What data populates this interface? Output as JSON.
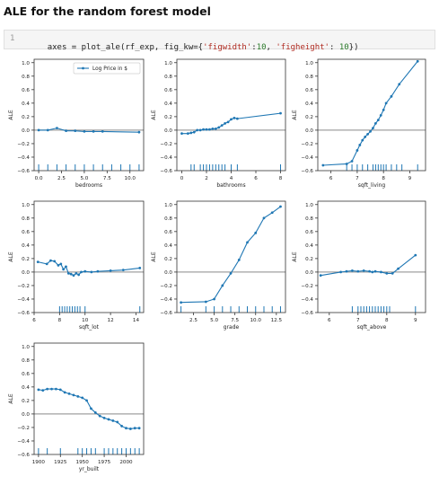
{
  "page": {
    "title": "ALE for the random forest model",
    "code": {
      "line_number": "1",
      "parts": [
        {
          "text": "axes = plot_ale(rf_exp, fig_kw={",
          "kind": "plain"
        },
        {
          "text": "'figwidth'",
          "kind": "str"
        },
        {
          "text": ":",
          "kind": "plain"
        },
        {
          "text": "10",
          "kind": "num"
        },
        {
          "text": ", ",
          "kind": "plain"
        },
        {
          "text": "'figheight'",
          "kind": "str"
        },
        {
          "text": ": ",
          "kind": "plain"
        },
        {
          "text": "10",
          "kind": "num"
        },
        {
          "text": "})",
          "kind": "plain"
        }
      ]
    }
  },
  "colors": {
    "line": "#1f77b4",
    "zero_line": "#a0a0a0",
    "axes": "#333333"
  },
  "chart_data": [
    {
      "type": "line",
      "xlabel": "bedrooms",
      "ylabel": "ALE",
      "xlim": [
        -0.5,
        11.5
      ],
      "ylim": [
        -0.6,
        1.05
      ],
      "xticks": [
        0,
        2.5,
        5,
        7.5,
        10
      ],
      "xtick_labels": [
        "0.0",
        "2.5",
        "5.0",
        "7.5",
        "10.0"
      ],
      "yticks": [
        -0.6,
        -0.4,
        -0.2,
        0,
        0.2,
        0.4,
        0.6,
        0.8,
        1.0
      ],
      "ytick_labels": [
        "−0.6",
        "−0.4",
        "−0.2",
        "0.0",
        "0.2",
        "0.4",
        "0.6",
        "0.8",
        "1.0"
      ],
      "legend": {
        "label": "Log Price in $",
        "position": "top-right"
      },
      "series": [
        {
          "name": "Log Price in $",
          "x": [
            0,
            1,
            2,
            3,
            4,
            5,
            6,
            7,
            11
          ],
          "y": [
            0.0,
            0.0,
            0.03,
            -0.01,
            -0.01,
            -0.02,
            -0.02,
            -0.02,
            -0.03
          ]
        }
      ],
      "rug": [
        0,
        1,
        2,
        3,
        4,
        5,
        6,
        7,
        8,
        9,
        10,
        11
      ]
    },
    {
      "type": "line",
      "xlabel": "bathrooms",
      "ylabel": "ALE",
      "xlim": [
        -0.4,
        8.4
      ],
      "ylim": [
        -0.6,
        1.05
      ],
      "xticks": [
        0,
        2,
        4,
        6,
        8
      ],
      "xtick_labels": [
        "0",
        "2",
        "4",
        "6",
        "8"
      ],
      "yticks": [
        -0.6,
        -0.4,
        -0.2,
        0,
        0.2,
        0.4,
        0.6,
        0.8,
        1.0
      ],
      "ytick_labels": [
        "−0.6",
        "−0.4",
        "−0.2",
        "0.0",
        "0.2",
        "0.4",
        "0.6",
        "0.8",
        "1.0"
      ],
      "series": [
        {
          "name": "",
          "x": [
            0,
            0.5,
            0.75,
            1,
            1.25,
            1.5,
            1.75,
            2,
            2.25,
            2.5,
            2.75,
            3,
            3.25,
            3.5,
            3.75,
            4,
            4.25,
            4.5,
            8
          ],
          "y": [
            -0.05,
            -0.05,
            -0.04,
            -0.03,
            0.0,
            0.0,
            0.01,
            0.01,
            0.01,
            0.02,
            0.02,
            0.04,
            0.07,
            0.1,
            0.12,
            0.16,
            0.18,
            0.17,
            0.25
          ]
        }
      ],
      "rug": [
        0.75,
        1,
        1.5,
        1.75,
        2,
        2.25,
        2.5,
        2.75,
        3,
        3.25,
        3.5,
        4,
        4.5,
        8
      ]
    },
    {
      "type": "line",
      "xlabel": "sqft_living",
      "ylabel": "ALE",
      "xlim": [
        5.5,
        9.6
      ],
      "ylim": [
        -0.6,
        1.05
      ],
      "xticks": [
        6,
        7,
        8,
        9
      ],
      "xtick_labels": [
        "6",
        "7",
        "8",
        "9"
      ],
      "yticks": [
        -0.6,
        -0.4,
        -0.2,
        0,
        0.2,
        0.4,
        0.6,
        0.8,
        1.0
      ],
      "ytick_labels": [
        "−0.6",
        "−0.4",
        "−0.2",
        "0.0",
        "0.2",
        "0.4",
        "0.6",
        "0.8",
        "1.0"
      ],
      "series": [
        {
          "name": "",
          "x": [
            5.7,
            6.6,
            6.8,
            7.0,
            7.1,
            7.2,
            7.3,
            7.4,
            7.5,
            7.6,
            7.7,
            7.8,
            7.9,
            8.0,
            8.1,
            8.3,
            8.6,
            9.3
          ],
          "y": [
            -0.52,
            -0.5,
            -0.46,
            -0.3,
            -0.22,
            -0.15,
            -0.1,
            -0.06,
            -0.02,
            0.03,
            0.1,
            0.15,
            0.22,
            0.3,
            0.4,
            0.5,
            0.68,
            1.02
          ]
        }
      ],
      "rug": [
        6.6,
        6.8,
        7.0,
        7.2,
        7.4,
        7.6,
        7.7,
        7.8,
        7.9,
        8.0,
        8.1,
        8.3,
        8.5,
        8.7,
        9.3
      ]
    },
    {
      "type": "line",
      "xlabel": "sqft_lot",
      "ylabel": "ALE",
      "xlim": [
        6,
        14.6
      ],
      "ylim": [
        -0.6,
        1.05
      ],
      "xticks": [
        6,
        8,
        10,
        12,
        14
      ],
      "xtick_labels": [
        "6",
        "8",
        "10",
        "12",
        "14"
      ],
      "yticks": [
        -0.6,
        -0.4,
        -0.2,
        0,
        0.2,
        0.4,
        0.6,
        0.8,
        1.0
      ],
      "ytick_labels": [
        "−0.6",
        "−0.4",
        "−0.2",
        "0.0",
        "0.2",
        "0.4",
        "0.6",
        "0.8",
        "1.0"
      ],
      "series": [
        {
          "name": "",
          "x": [
            6.3,
            7.0,
            7.3,
            7.6,
            7.9,
            8.1,
            8.3,
            8.5,
            8.7,
            8.9,
            9.1,
            9.3,
            9.5,
            9.7,
            10.0,
            10.5,
            11,
            12,
            13,
            14.3
          ],
          "y": [
            0.15,
            0.12,
            0.17,
            0.16,
            0.1,
            0.12,
            0.04,
            0.08,
            -0.02,
            -0.03,
            -0.05,
            -0.02,
            -0.04,
            0.0,
            0.01,
            0.0,
            0.01,
            0.02,
            0.03,
            0.06
          ]
        }
      ],
      "rug": [
        8.0,
        8.2,
        8.4,
        8.6,
        8.8,
        9.0,
        9.2,
        9.4,
        9.6,
        10.0,
        14.3
      ]
    },
    {
      "type": "line",
      "xlabel": "grade",
      "ylabel": "ALE",
      "xlim": [
        0.5,
        13.6
      ],
      "ylim": [
        -0.6,
        1.05
      ],
      "xticks": [
        2.5,
        5,
        7.5,
        10,
        12.5
      ],
      "xtick_labels": [
        "2.5",
        "5.0",
        "7.5",
        "10.0",
        "12.5"
      ],
      "yticks": [
        -0.6,
        -0.4,
        -0.2,
        0,
        0.2,
        0.4,
        0.6,
        0.8,
        1.0
      ],
      "ytick_labels": [
        "−0.6",
        "−0.4",
        "−0.2",
        "0.0",
        "0.2",
        "0.4",
        "0.6",
        "0.8",
        "1.0"
      ],
      "series": [
        {
          "name": "",
          "x": [
            1,
            4,
            5,
            6,
            7,
            8,
            9,
            10,
            11,
            12,
            13
          ],
          "y": [
            -0.45,
            -0.44,
            -0.4,
            -0.2,
            -0.02,
            0.18,
            0.44,
            0.58,
            0.8,
            0.88,
            0.97
          ]
        }
      ],
      "rug": [
        1,
        4,
        5,
        6,
        7,
        8,
        9,
        10,
        11,
        12,
        13
      ]
    },
    {
      "type": "line",
      "xlabel": "sqft_above",
      "ylabel": "ALE",
      "xlim": [
        5.6,
        9.35
      ],
      "ylim": [
        -0.6,
        1.05
      ],
      "xticks": [
        6,
        7,
        8,
        9
      ],
      "xtick_labels": [
        "6",
        "7",
        "8",
        "9"
      ],
      "yticks": [
        -0.6,
        -0.4,
        -0.2,
        0,
        0.2,
        0.4,
        0.6,
        0.8,
        1.0
      ],
      "ytick_labels": [
        "−0.6",
        "−0.4",
        "−0.2",
        "0.0",
        "0.2",
        "0.4",
        "0.6",
        "0.8",
        "1.0"
      ],
      "series": [
        {
          "name": "",
          "x": [
            5.7,
            6.4,
            6.6,
            6.8,
            7.0,
            7.2,
            7.4,
            7.5,
            7.6,
            7.8,
            8.0,
            8.2,
            8.4,
            9.0
          ],
          "y": [
            -0.05,
            0.0,
            0.01,
            0.02,
            0.01,
            0.02,
            0.01,
            0.0,
            0.01,
            0.0,
            -0.02,
            -0.02,
            0.05,
            0.25
          ]
        }
      ],
      "rug": [
        6.8,
        7.0,
        7.1,
        7.2,
        7.3,
        7.4,
        7.5,
        7.6,
        7.7,
        7.8,
        7.9,
        8.0,
        8.1,
        9.0
      ]
    },
    {
      "type": "line",
      "xlabel": "yr_built",
      "ylabel": "ALE",
      "xlim": [
        1895,
        2020
      ],
      "ylim": [
        -0.6,
        1.05
      ],
      "xticks": [
        1900,
        1925,
        1950,
        1975,
        2000
      ],
      "xtick_labels": [
        "1900",
        "1925",
        "1950",
        "1975",
        "2000"
      ],
      "yticks": [
        -0.6,
        -0.4,
        -0.2,
        0,
        0.2,
        0.4,
        0.6,
        0.8,
        1.0
      ],
      "ytick_labels": [
        "−0.6",
        "−0.4",
        "−0.2",
        "0.0",
        "0.2",
        "0.4",
        "0.6",
        "0.8",
        "1.0"
      ],
      "series": [
        {
          "name": "",
          "x": [
            1900,
            1905,
            1910,
            1915,
            1920,
            1925,
            1930,
            1935,
            1940,
            1945,
            1950,
            1955,
            1960,
            1965,
            1970,
            1975,
            1980,
            1985,
            1990,
            1995,
            2000,
            2005,
            2010,
            2015
          ],
          "y": [
            0.36,
            0.35,
            0.37,
            0.37,
            0.37,
            0.36,
            0.32,
            0.3,
            0.28,
            0.26,
            0.24,
            0.2,
            0.08,
            0.02,
            -0.03,
            -0.06,
            -0.08,
            -0.1,
            -0.12,
            -0.18,
            -0.21,
            -0.22,
            -0.21,
            -0.21
          ]
        }
      ],
      "rug": [
        1900,
        1910,
        1925,
        1945,
        1950,
        1955,
        1960,
        1965,
        1975,
        1980,
        1985,
        1990,
        1995,
        2000,
        2005,
        2010,
        2015
      ]
    }
  ]
}
